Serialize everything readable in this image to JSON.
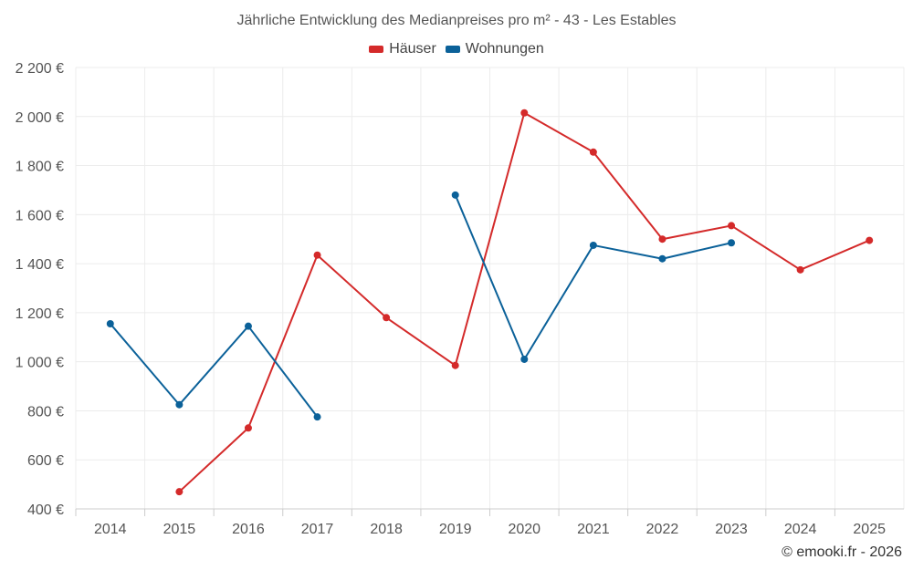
{
  "chart_data": {
    "type": "line",
    "title": "Jährliche Entwicklung des Medianpreises pro m² - 43 - Les Estables",
    "xlabel": "",
    "ylabel": "",
    "ylim": [
      400,
      2200
    ],
    "yticks": [
      400,
      600,
      800,
      1000,
      1200,
      1400,
      1600,
      1800,
      2000,
      2200
    ],
    "ytick_labels": [
      "400 €",
      "600 €",
      "800 €",
      "1 000 €",
      "1 200 €",
      "1 400 €",
      "1 600 €",
      "1 800 €",
      "2 000 €",
      "2 200 €"
    ],
    "categories": [
      "2014",
      "2015",
      "2016",
      "2017",
      "2018",
      "2019",
      "2020",
      "2021",
      "2022",
      "2023",
      "2024",
      "2025"
    ],
    "series": [
      {
        "name": "Häuser",
        "color": "#d42a2a",
        "values": [
          null,
          470,
          730,
          1435,
          1180,
          985,
          2015,
          1855,
          1500,
          1555,
          1375,
          1495
        ]
      },
      {
        "name": "Wohnungen",
        "color": "#0b6199",
        "values": [
          1155,
          825,
          1145,
          775,
          null,
          1680,
          1010,
          1475,
          1420,
          1485,
          null,
          null
        ]
      }
    ],
    "grid": true,
    "legend": "top-center"
  },
  "credit": "© emooki.fr - 2026"
}
